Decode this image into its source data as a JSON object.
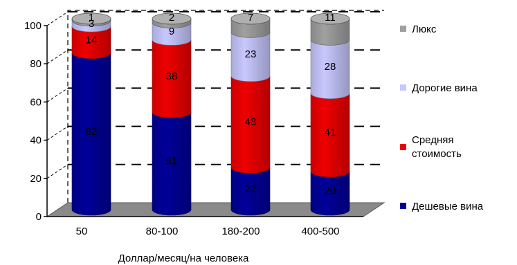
{
  "chart_data": {
    "type": "bar",
    "stacked": true,
    "style": "3d-cylinder",
    "categories": [
      "50",
      "80-100",
      "180-200",
      "400-500"
    ],
    "series": [
      {
        "name": "Дешевые вина",
        "values": [
          82,
          51,
          22,
          20
        ],
        "color": "#000099"
      },
      {
        "name": "Средняя стоимость",
        "values": [
          14,
          38,
          48,
          41
        ],
        "color": "#ee0000"
      },
      {
        "name": "Дорогие вина",
        "values": [
          3,
          9,
          23,
          28
        ],
        "color": "#c8c8ff"
      },
      {
        "name": "Люкс",
        "values": [
          1,
          2,
          7,
          11
        ],
        "color": "#a0a0a0"
      }
    ],
    "xlabel": "Доллар/месяц/на человека",
    "ylabel": "",
    "ylim": [
      0,
      100
    ],
    "yticks": [
      0,
      20,
      40,
      60,
      80,
      100
    ],
    "grid": true,
    "legend": "right"
  }
}
